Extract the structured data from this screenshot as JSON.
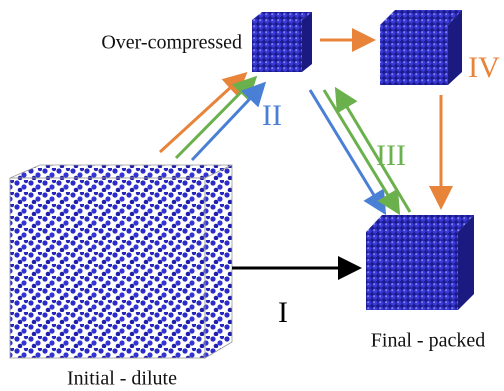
{
  "nodes": [
    {
      "label": "Over-compressed"
    },
    {
      "label": "Final - packed"
    },
    {
      "label": "Initial - dilute"
    }
  ],
  "paths": [
    {
      "label": "I"
    },
    {
      "label": "II"
    },
    {
      "label": "III"
    },
    {
      "label": "IV"
    }
  ]
}
